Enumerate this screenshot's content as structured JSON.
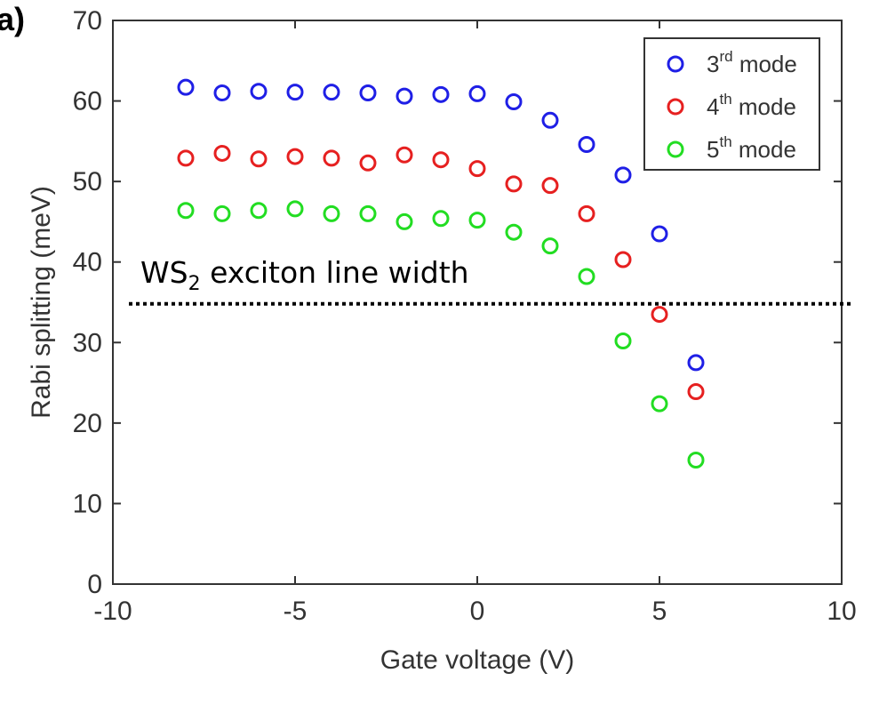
{
  "panel_label": "a)",
  "chart_data": {
    "type": "scatter",
    "xlabel": "Gate voltage (V)",
    "ylabel": "Rabi splitting (meV)",
    "xlim": [
      -10,
      10
    ],
    "ylim": [
      0,
      70
    ],
    "xticks": [
      -10,
      -5,
      0,
      5,
      10
    ],
    "yticks": [
      0,
      10,
      20,
      30,
      40,
      50,
      60,
      70
    ],
    "grid": false,
    "legend_position": "top-right",
    "marker": "open-circle",
    "series": [
      {
        "name": "3rd mode",
        "legend_base": "3",
        "legend_sup": "rd",
        "legend_rest": " mode",
        "color": "#1f1fe6",
        "x": [
          -8,
          -7,
          -6,
          -5,
          -4,
          -3,
          -2,
          -1,
          0,
          1,
          2,
          3,
          4,
          5,
          6
        ],
        "y": [
          61.7,
          61.0,
          61.2,
          61.1,
          61.1,
          61.0,
          60.6,
          60.8,
          60.9,
          59.9,
          57.6,
          54.6,
          50.8,
          43.5,
          27.5
        ]
      },
      {
        "name": "4th mode",
        "legend_base": "4",
        "legend_sup": "th",
        "legend_rest": " mode",
        "color": "#e62020",
        "x": [
          -8,
          -7,
          -6,
          -5,
          -4,
          -3,
          -2,
          -1,
          0,
          1,
          2,
          3,
          4,
          5,
          6
        ],
        "y": [
          52.9,
          53.5,
          52.8,
          53.1,
          52.9,
          52.3,
          53.3,
          52.7,
          51.6,
          49.7,
          49.5,
          46.0,
          40.3,
          33.5,
          23.9
        ]
      },
      {
        "name": "5th mode",
        "legend_base": "5",
        "legend_sup": "th",
        "legend_rest": " mode",
        "color": "#22dd22",
        "x": [
          -8,
          -7,
          -6,
          -5,
          -4,
          -3,
          -2,
          -1,
          0,
          1,
          2,
          3,
          4,
          5,
          6
        ],
        "y": [
          46.4,
          46.0,
          46.4,
          46.6,
          46.0,
          46.0,
          45.0,
          45.4,
          45.2,
          43.7,
          42.0,
          38.2,
          30.2,
          22.4,
          15.4
        ]
      }
    ],
    "reference_line": {
      "y": 34.8,
      "style": "dotted",
      "label_base": "WS",
      "label_sub": "2",
      "label_rest": " exciton line width"
    }
  }
}
